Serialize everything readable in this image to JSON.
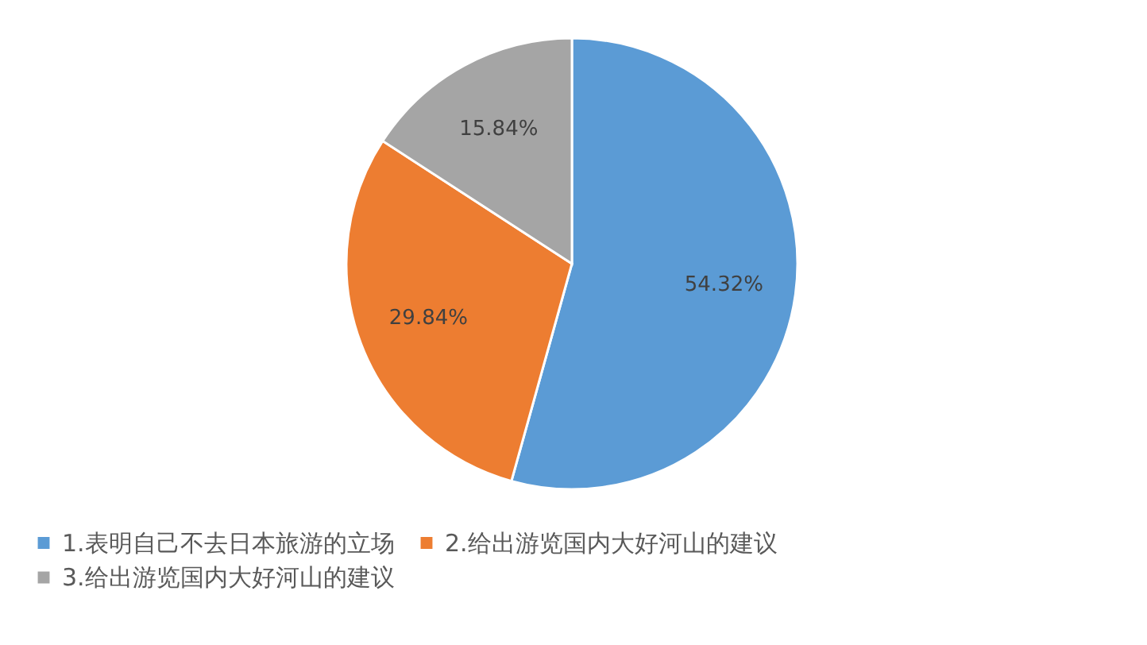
{
  "chart_data": {
    "type": "pie",
    "categories": [
      "1.表明自己不去日本旅游的立场",
      "2.给出游览国内大好河山的建议",
      "3.给出游览国内大好河山的建议"
    ],
    "values": [
      54.32,
      29.84,
      15.84
    ],
    "colors": [
      "#5b9bd5",
      "#ed7d31",
      "#a5a5a5"
    ],
    "value_labels": [
      "54.32%",
      "29.84%",
      "15.84%"
    ],
    "legend": "bottom"
  }
}
